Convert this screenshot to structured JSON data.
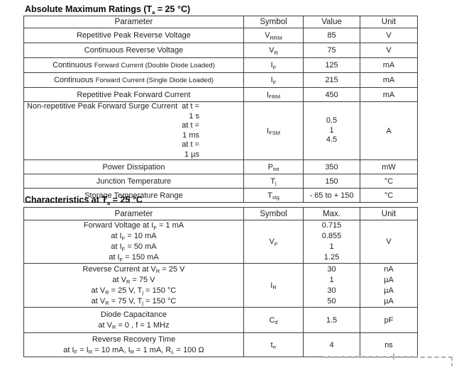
{
  "page": {
    "background": "#ffffff",
    "text_color": "#222222",
    "border_color": "#3e3e3e"
  },
  "abs_max": {
    "title": "Absolute Maximum Ratings (T~a~ = 25 °C)",
    "headers": [
      "Parameter",
      "Symbol",
      "Value",
      "Unit"
    ],
    "rows": [
      {
        "param": [
          "Repetitive Peak Reverse Voltage"
        ],
        "symbol": "V~RRM~",
        "values": [
          "85"
        ],
        "units": [
          "V"
        ]
      },
      {
        "param": [
          "Continuous Reverse Voltage"
        ],
        "symbol": "V~R~",
        "values": [
          "75"
        ],
        "units": [
          "V"
        ]
      },
      {
        "param": [
          "Continuous `Forward Current (Double Diode Loaded)`"
        ],
        "symbol": "I~F~",
        "values": [
          "125"
        ],
        "units": [
          "mA"
        ]
      },
      {
        "param": [
          "Continuous `Forward Current (Single Diode Loaded)`"
        ],
        "symbol": "I~F~",
        "values": [
          "215"
        ],
        "units": [
          "mA"
        ]
      },
      {
        "param": [
          "Repetitive Peak Forward Current"
        ],
        "symbol": "I~FRM~",
        "values": [
          "450"
        ],
        "units": [
          "mA"
        ]
      },
      {
        "param_label": "Non-repetitive Peak Forward Surge Current",
        "param_conditions": [
          "at t = 1 s",
          "at t = 1 ms",
          "at t = 1 µs"
        ],
        "symbol": "I~FSM~",
        "values": [
          "0.5",
          "1",
          "4.5"
        ],
        "units": [
          "A"
        ]
      },
      {
        "param": [
          "Power Dissipation"
        ],
        "symbol": "P~tot~",
        "values": [
          "350"
        ],
        "units": [
          "mW"
        ]
      },
      {
        "param": [
          "Junction Temperature"
        ],
        "symbol": "T~j~",
        "values": [
          "150"
        ],
        "units": [
          "°C"
        ]
      },
      {
        "param": [
          "Storage Temperature Range"
        ],
        "symbol": "T~stg~",
        "values": [
          "- 65 to + 150"
        ],
        "units": [
          "°C"
        ]
      }
    ]
  },
  "characteristics": {
    "title": "Characteristics at T~a~ = 25 °C",
    "headers": [
      "Parameter",
      "Symbol",
      "Max.",
      "Unit"
    ],
    "rows": [
      {
        "param": [
          "Forward Voltage at I~F~ = 1 mA",
          "at I~F~ = 10 mA",
          "at I~F~ = 50 mA",
          "at I~F~ = 150 mA"
        ],
        "symbol": "V~F~",
        "values": [
          "0.715",
          "0.855",
          "1",
          "1.25"
        ],
        "units": [
          "V"
        ]
      },
      {
        "param": [
          "Reverse Current at V~R~ = 25 V",
          "at V~R~ = 75 V",
          "at V~R~ = 25 V, T~j~ = 150 °C",
          "at V~R~ = 75 V, T~j~ = 150 °C"
        ],
        "symbol": "I~R~",
        "values": [
          "30",
          "1",
          "30",
          "50"
        ],
        "units": [
          "nA",
          "µA",
          "µA",
          "µA"
        ]
      },
      {
        "param": [
          "Diode Capacitance",
          "at V~R~ = 0 , f = 1 MHz"
        ],
        "symbol": "C~d~",
        "values": [
          "1.5"
        ],
        "units": [
          "pF"
        ]
      },
      {
        "param": [
          "Reverse Recovery Time",
          "at I~F~ = I~R~ = 10 mA, I~R~ = 1 mA, R~L~ = 100 Ω"
        ],
        "symbol": "t~rr~",
        "values": [
          "4"
        ],
        "units": [
          "ns"
        ]
      }
    ]
  }
}
